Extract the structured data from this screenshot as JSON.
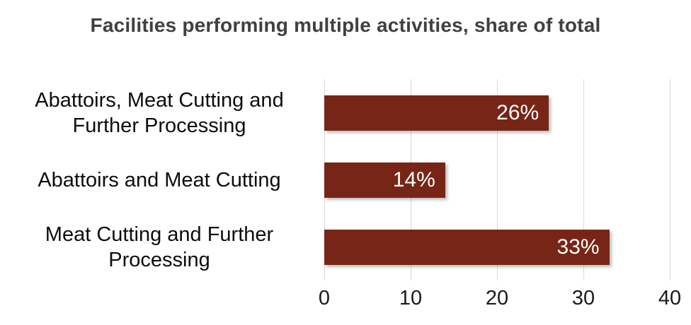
{
  "chart_data": {
    "type": "bar",
    "orientation": "horizontal",
    "title": "Facilities performing multiple activities, share of total",
    "categories": [
      "Abattoirs, Meat Cutting and Further Processing",
      "Abattoirs and Meat Cutting",
      "Meat Cutting and Further Processing"
    ],
    "label_lines": [
      [
        "Abattoirs, Meat Cutting and",
        "Further Processing"
      ],
      [
        "Abattoirs and Meat Cutting",
        ""
      ],
      [
        "Meat Cutting and Further",
        "Processing"
      ]
    ],
    "values": [
      26,
      14,
      33
    ],
    "value_labels": [
      "26%",
      "14%",
      "33%"
    ],
    "xlabel": "",
    "ylabel": "",
    "xlim": [
      0,
      40
    ],
    "xticks": [
      "0",
      "10",
      "20",
      "30",
      "40"
    ],
    "grid": "vertical-gridlines",
    "legend": "none",
    "colors": {
      "bar": "#772516",
      "title": "#404040",
      "gridline": "#d9d9d9",
      "category_label": "#0d0d0d",
      "tick_label": "#1a1a1a",
      "value_label": "#ffffff",
      "background": "#ffffff"
    }
  }
}
